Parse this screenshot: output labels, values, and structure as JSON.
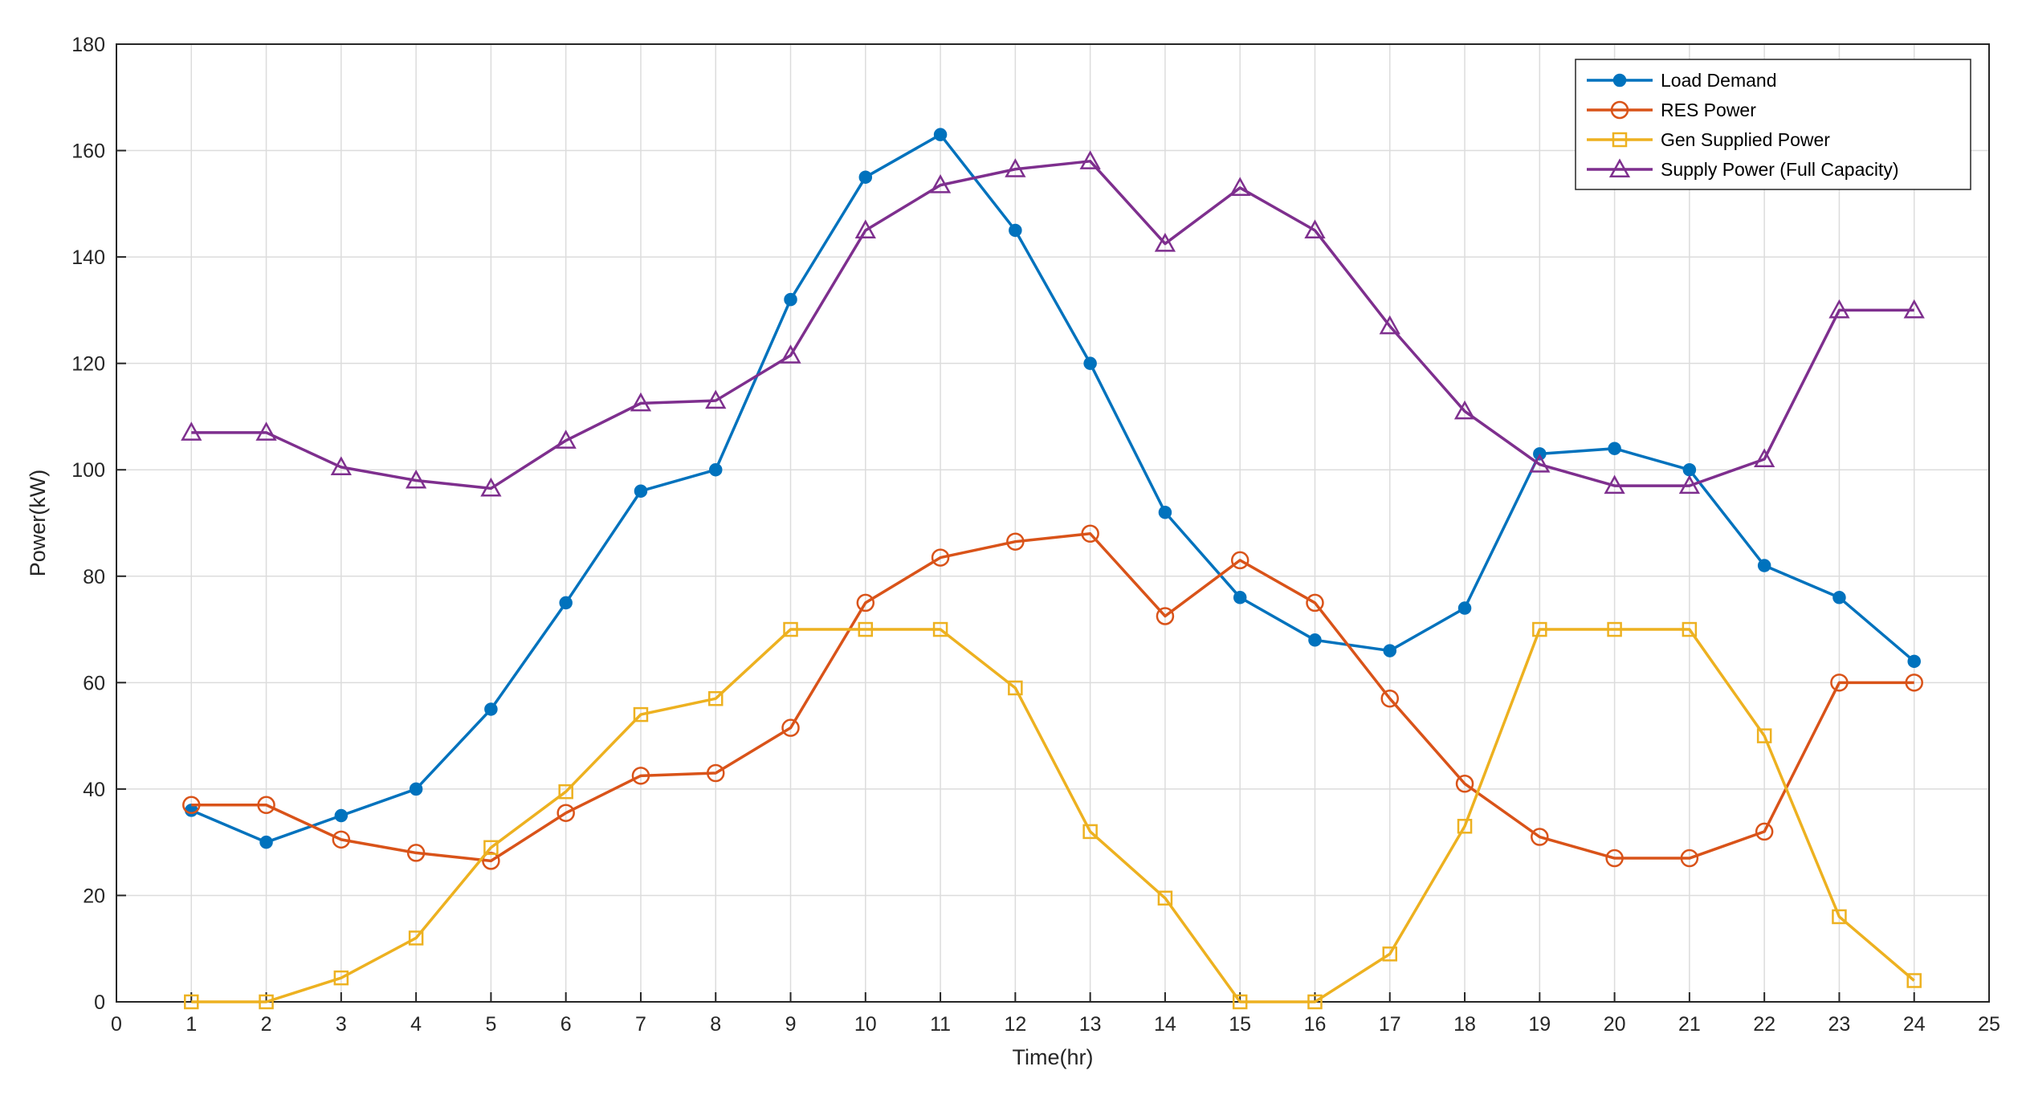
{
  "chart_data": {
    "type": "line",
    "xlabel": "Time(hr)",
    "ylabel": "Power(kW)",
    "xlim": [
      0,
      25
    ],
    "ylim": [
      0,
      180
    ],
    "xticks": [
      0,
      1,
      2,
      3,
      4,
      5,
      6,
      7,
      8,
      9,
      10,
      11,
      12,
      13,
      14,
      15,
      16,
      17,
      18,
      19,
      20,
      21,
      22,
      23,
      24,
      25
    ],
    "yticks": [
      0,
      20,
      40,
      60,
      80,
      100,
      120,
      140,
      160,
      180
    ],
    "grid": true,
    "legend_position": "top-right",
    "x": [
      1,
      2,
      3,
      4,
      5,
      6,
      7,
      8,
      9,
      10,
      11,
      12,
      13,
      14,
      15,
      16,
      17,
      18,
      19,
      20,
      21,
      22,
      23,
      24
    ],
    "series": [
      {
        "name": "Load Demand",
        "color": "#0072BD",
        "marker": "dot",
        "values": [
          36,
          30,
          35,
          40,
          55,
          75,
          96,
          100,
          132,
          155,
          163,
          145,
          120,
          92,
          76,
          68,
          66,
          74,
          103,
          104,
          100,
          82,
          76,
          64
        ]
      },
      {
        "name": "RES Power",
        "color": "#D95319",
        "marker": "circle",
        "values": [
          37,
          37,
          30.5,
          28,
          26.5,
          35.5,
          42.5,
          43,
          51.5,
          75,
          83.5,
          86.5,
          88,
          72.5,
          83,
          75,
          57,
          41,
          31,
          27,
          27,
          32,
          60,
          60
        ]
      },
      {
        "name": "Gen Supplied Power",
        "color": "#EDB120",
        "marker": "square",
        "values": [
          0,
          0,
          4.5,
          12,
          29,
          39.5,
          54,
          57,
          70,
          70,
          70,
          59,
          32,
          19.5,
          0,
          0,
          9,
          33,
          70,
          70,
          70,
          50,
          16,
          4
        ]
      },
      {
        "name": "Supply Power (Full Capacity)",
        "color": "#7E2F8E",
        "marker": "triangle",
        "values": [
          107,
          107,
          100.5,
          98,
          96.5,
          105.5,
          112.5,
          113,
          121.5,
          145,
          153.5,
          156.5,
          158,
          142.5,
          153,
          145,
          127,
          111,
          101,
          97,
          97,
          102,
          130,
          130
        ]
      }
    ]
  }
}
